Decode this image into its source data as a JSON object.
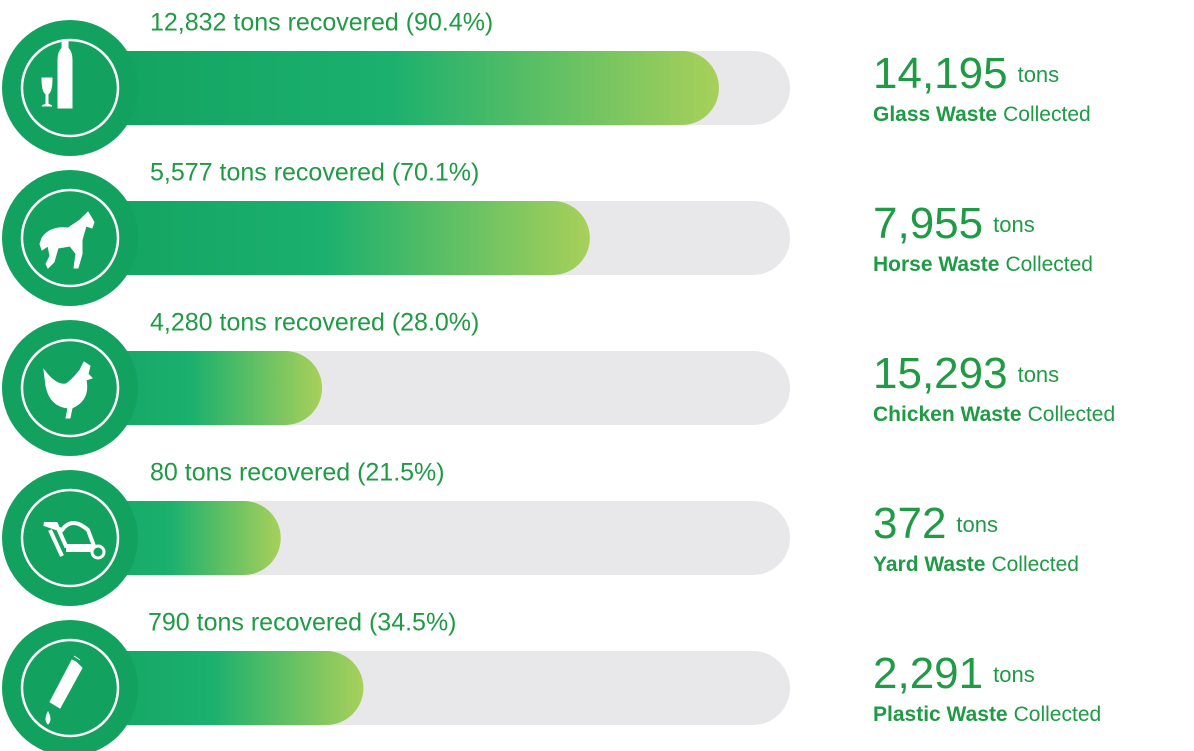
{
  "chart_data": {
    "type": "bar",
    "categories": [
      "Glass Waste",
      "Horse Waste",
      "Chicken Waste",
      "Yard Waste",
      "Plastic Waste"
    ],
    "values": [
      90.4,
      70.1,
      28.0,
      21.5,
      34.5
    ],
    "value_labels": [
      "12,832 tons recovered (90.4%)",
      "5,577 tons recovered (70.1%)",
      "4,280 tons recovered (28.0%)",
      "80 tons recovered (21.5%)",
      "790 tons recovered (34.5%)"
    ],
    "collected": [
      "14,195",
      "7,955",
      "15,293",
      "372",
      "2,291"
    ],
    "unit": "tons",
    "suffix": "Collected",
    "xlim": [
      0,
      100
    ],
    "color": "#12a15e",
    "color_end": "#a8d05a",
    "track_color": "#e8e8ea"
  }
}
